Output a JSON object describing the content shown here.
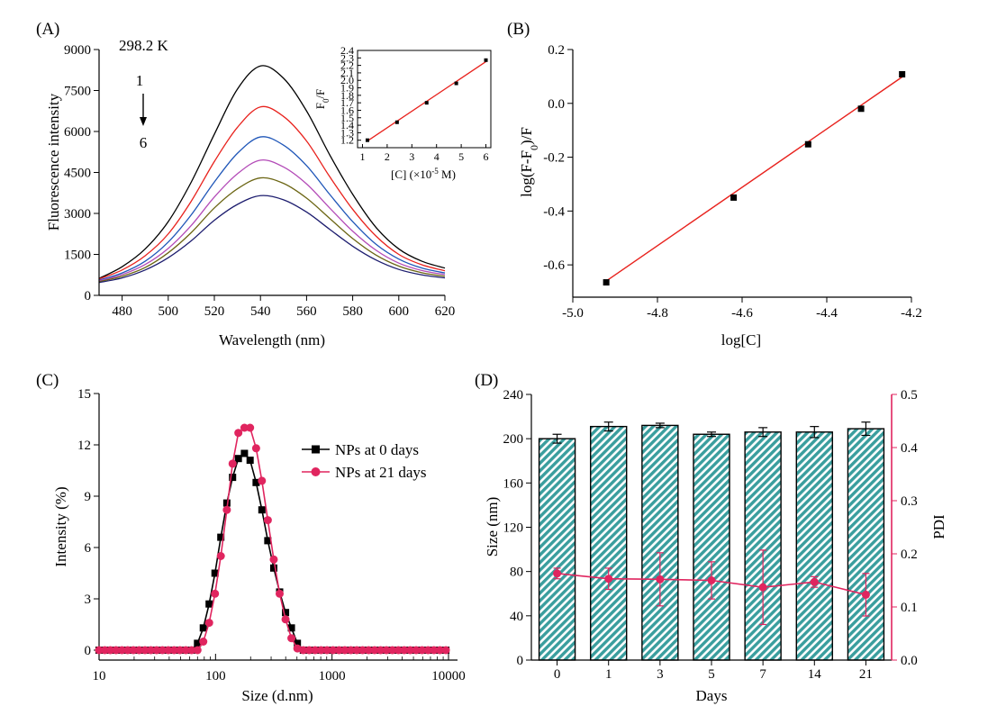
{
  "panels": {
    "A": {
      "label": "(A)",
      "temperature": "298.2 K",
      "curve_first": "1",
      "curve_last": "6",
      "xlabel": "Wavelength (nm)",
      "ylabel": "Fluorescence intensity",
      "inset_ylabel": "F0/F",
      "inset_xlabel": "[C] (×10-5 M)"
    },
    "B": {
      "label": "(B)",
      "xlabel": "log[C]",
      "ylabel": "log(F-F0)/F"
    },
    "C": {
      "label": "(C)",
      "xlabel": "Size (d.nm)",
      "ylabel": "Intensity (%)"
    },
    "D": {
      "label": "(D)",
      "xlabel": "Days",
      "ylabel_left": "Size (nm)",
      "ylabel_right": "PDI"
    }
  },
  "colors": {
    "curves_A": [
      "#000000",
      "#e8221d",
      "#1f56b8",
      "#b34ab7",
      "#6b6513",
      "#1c1c6e"
    ],
    "fit": "#e8221d",
    "series_C0": "#000000",
    "series_C21": "#e0255f",
    "bars_D": "#3a9e9e",
    "pdi_D": "#e0255f"
  },
  "chart_data": [
    {
      "panel": "A",
      "type": "line",
      "title": "",
      "xlabel": "Wavelength (nm)",
      "ylabel": "Fluorescence intensity",
      "xlim": [
        470,
        620
      ],
      "ylim": [
        0,
        9000
      ],
      "xticks": [
        480,
        500,
        520,
        540,
        560,
        580,
        600,
        620
      ],
      "yticks": [
        0,
        1500,
        3000,
        4500,
        6000,
        7500,
        9000
      ],
      "curve_labels": [
        "1",
        "6"
      ],
      "peak_wavelength": 540,
      "series": [
        {
          "x": [
            470,
            480,
            490,
            500,
            510,
            520,
            530,
            540,
            550,
            560,
            570,
            580,
            590,
            600,
            610,
            620
          ],
          "y": [
            620,
            1050,
            1700,
            2700,
            4150,
            5900,
            7550,
            8400,
            7950,
            6750,
            5150,
            3700,
            2500,
            1700,
            1250,
            1000
          ]
        },
        {
          "x": [
            470,
            480,
            490,
            500,
            510,
            520,
            530,
            540,
            550,
            560,
            570,
            580,
            590,
            600,
            610,
            620
          ],
          "y": [
            600,
            930,
            1450,
            2250,
            3450,
            4900,
            6150,
            6900,
            6550,
            5650,
            4350,
            3150,
            2180,
            1500,
            1120,
            900
          ]
        },
        {
          "x": [
            470,
            480,
            490,
            500,
            510,
            520,
            530,
            540,
            550,
            560,
            570,
            580,
            590,
            600,
            610,
            620
          ],
          "y": [
            560,
            820,
            1250,
            1950,
            2950,
            4150,
            5200,
            5800,
            5500,
            4750,
            3700,
            2700,
            1880,
            1330,
            1000,
            820
          ]
        },
        {
          "x": [
            470,
            480,
            490,
            500,
            510,
            520,
            530,
            540,
            550,
            560,
            570,
            580,
            590,
            600,
            610,
            620
          ],
          "y": [
            530,
            760,
            1130,
            1720,
            2560,
            3600,
            4450,
            4950,
            4700,
            4080,
            3200,
            2350,
            1660,
            1180,
            910,
            760
          ]
        },
        {
          "x": [
            470,
            480,
            490,
            500,
            510,
            520,
            530,
            540,
            550,
            560,
            570,
            580,
            590,
            600,
            610,
            620
          ],
          "y": [
            500,
            700,
            1020,
            1560,
            2300,
            3200,
            3900,
            4300,
            4100,
            3560,
            2820,
            2080,
            1480,
            1070,
            830,
            700
          ]
        },
        {
          "x": [
            470,
            480,
            490,
            500,
            510,
            520,
            530,
            540,
            550,
            560,
            570,
            580,
            590,
            600,
            610,
            620
          ],
          "y": [
            470,
            640,
            930,
            1380,
            2000,
            2750,
            3330,
            3650,
            3500,
            3050,
            2420,
            1800,
            1300,
            950,
            750,
            640
          ]
        }
      ]
    },
    {
      "panel": "A-inset",
      "type": "scatter",
      "xlim": [
        0.8,
        6.2
      ],
      "ylim": [
        1.1,
        2.4
      ],
      "xticks": [
        1,
        2,
        3,
        4,
        5,
        6
      ],
      "yticks": [
        1.2,
        1.3,
        1.4,
        1.5,
        1.6,
        1.7,
        1.8,
        1.9,
        2.0,
        2.1,
        2.2,
        2.3,
        2.4
      ],
      "points": {
        "x": [
          1.2,
          2.4,
          3.6,
          4.8,
          6.0
        ],
        "y": [
          1.2,
          1.44,
          1.7,
          1.96,
          2.27
        ]
      },
      "fit": {
        "x": [
          1.2,
          6.0
        ],
        "y": [
          1.19,
          2.25
        ]
      }
    },
    {
      "panel": "B",
      "type": "scatter",
      "xlabel": "log[C]",
      "ylabel": "log(F-F0)/F",
      "xlim": [
        -5.0,
        -4.2
      ],
      "ylim": [
        -0.72,
        0.2
      ],
      "xticks": [
        -5.0,
        -4.8,
        -4.6,
        -4.4,
        -4.2
      ],
      "yticks": [
        -0.6,
        -0.4,
        -0.2,
        0.0,
        0.2
      ],
      "points": {
        "x": [
          -4.921,
          -4.62,
          -4.444,
          -4.319,
          -4.222
        ],
        "y": [
          -0.665,
          -0.35,
          -0.152,
          -0.02,
          0.108
        ]
      },
      "fit": {
        "x": [
          -4.921,
          -4.222
        ],
        "y": [
          -0.66,
          0.098
        ]
      }
    },
    {
      "panel": "C",
      "type": "line",
      "xlabel": "Size (d.nm)",
      "ylabel": "Intensity (%)",
      "xscale": "log",
      "xlim": [
        10,
        10000
      ],
      "ylim": [
        -0.3,
        15
      ],
      "xticks": [
        10,
        100,
        1000,
        10000
      ],
      "yticks": [
        0,
        3,
        6,
        9,
        12,
        15
      ],
      "series": [
        {
          "name": "NPs at 0 days",
          "x": [
            10,
            11.2,
            12.5,
            14,
            15.7,
            17.6,
            19.7,
            22.1,
            24.8,
            27.8,
            31.2,
            35,
            39.3,
            44.1,
            49.5,
            55.5,
            62.3,
            70,
            78.5,
            88.1,
            98.9,
            111,
            125,
            140,
            157,
            177,
            198,
            223,
            250,
            281,
            316,
            355,
            399,
            448,
            504,
            567,
            637,
            716,
            805,
            905,
            1020,
            1150,
            1290,
            1450,
            1630,
            1830,
            2060,
            2320,
            2610,
            2930,
            3300,
            3710,
            4170,
            4690,
            5270,
            5930,
            6670,
            7500,
            8440,
            9490
          ],
          "y": [
            0,
            0,
            0,
            0,
            0,
            0,
            0,
            0,
            0,
            0,
            0,
            0,
            0,
            0,
            0,
            0,
            0,
            0.4,
            1.3,
            2.7,
            4.5,
            6.6,
            8.6,
            10.1,
            11.2,
            11.5,
            11.1,
            9.8,
            8.2,
            6.4,
            4.8,
            3.4,
            2.2,
            1.3,
            0.4,
            0,
            0,
            0,
            0,
            0,
            0,
            0,
            0,
            0,
            0,
            0,
            0,
            0,
            0,
            0,
            0,
            0,
            0,
            0,
            0,
            0,
            0,
            0,
            0,
            0
          ]
        },
        {
          "name": "NPs at 21 days",
          "x": [
            10,
            11.2,
            12.5,
            14,
            15.7,
            17.6,
            19.7,
            22.1,
            24.8,
            27.8,
            31.2,
            35,
            39.3,
            44.1,
            49.5,
            55.5,
            62.3,
            70,
            78.5,
            88.1,
            98.9,
            111,
            125,
            140,
            157,
            177,
            198,
            223,
            250,
            281,
            316,
            355,
            399,
            448,
            504,
            567,
            637,
            716,
            805,
            905,
            1020,
            1150,
            1290,
            1450,
            1630,
            1830,
            2060,
            2320,
            2610,
            2930,
            3300,
            3710,
            4170,
            4690,
            5270,
            5930,
            6670,
            7500,
            8440,
            9490
          ],
          "y": [
            0,
            0,
            0,
            0,
            0,
            0,
            0,
            0,
            0,
            0,
            0,
            0,
            0,
            0,
            0,
            0,
            0,
            0,
            0.5,
            1.6,
            3.3,
            5.5,
            8.2,
            10.9,
            12.7,
            13.0,
            13.0,
            11.8,
            9.9,
            7.6,
            5.3,
            3.3,
            1.8,
            0.7,
            0.1,
            0,
            0,
            0,
            0,
            0,
            0,
            0,
            0,
            0,
            0,
            0,
            0,
            0,
            0,
            0,
            0,
            0,
            0,
            0,
            0,
            0,
            0,
            0,
            0,
            0
          ]
        }
      ],
      "legend": "top-right"
    },
    {
      "panel": "D",
      "type": "bar",
      "xlabel": "Days",
      "ylabel": "Size (nm)",
      "ylabel_right": "PDI",
      "categories": [
        "0",
        "1",
        "3",
        "5",
        "7",
        "14",
        "21"
      ],
      "ylim": [
        0,
        240
      ],
      "yticks": [
        0,
        40,
        80,
        120,
        160,
        200,
        240
      ],
      "ylim_right": [
        0,
        0.5
      ],
      "yticks_right": [
        0.0,
        0.1,
        0.2,
        0.3,
        0.4,
        0.5
      ],
      "series": [
        {
          "name": "Size (nm)",
          "values": [
            200,
            211,
            212,
            204,
            206,
            206,
            209
          ],
          "errors": [
            4,
            4,
            2,
            2,
            4,
            5,
            6
          ]
        },
        {
          "name": "PDI",
          "axis": "right",
          "values": [
            0.163,
            0.153,
            0.152,
            0.15,
            0.137,
            0.147,
            0.123
          ],
          "errors": [
            0.01,
            0.02,
            0.05,
            0.035,
            0.07,
            0.01,
            0.04
          ]
        }
      ]
    }
  ]
}
